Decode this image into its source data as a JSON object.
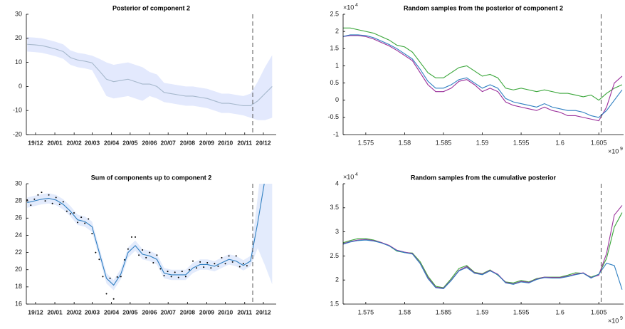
{
  "chart_data": [
    {
      "type": "line",
      "title": "Posterior of component 2",
      "x": [
        1.574,
        1.575,
        1.576,
        1.577,
        1.578,
        1.579,
        1.58,
        1.581,
        1.582,
        1.583,
        1.584,
        1.585,
        1.586,
        1.587,
        1.588,
        1.589,
        1.59,
        1.591,
        1.592,
        1.593,
        1.594,
        1.595,
        1.596,
        1.597,
        1.598,
        1.599,
        1.6,
        1.601,
        1.602,
        1.603,
        1.604,
        1.605,
        1.606,
        1.607,
        1.608
      ],
      "xlim": [
        1.57388,
        1.60856
      ],
      "xticks": [
        {
          "value": 1.5751584,
          "label": "19/12"
        },
        {
          "value": 1.5778368,
          "label": "20/01"
        },
        {
          "value": 1.5805152,
          "label": "20/02"
        },
        {
          "value": 1.5830208,
          "label": "20/03"
        },
        {
          "value": 1.5856992,
          "label": "20/04"
        },
        {
          "value": 1.5882912,
          "label": "20/05"
        },
        {
          "value": 1.5909696,
          "label": "20/06"
        },
        {
          "value": 1.5935616,
          "label": "20/07"
        },
        {
          "value": 1.59624,
          "label": "20/08"
        },
        {
          "value": 1.5989184,
          "label": "20/09"
        },
        {
          "value": 1.6015104,
          "label": "20/10"
        },
        {
          "value": 1.6041888,
          "label": "20/11"
        },
        {
          "value": 1.6067808,
          "label": "20/12"
        }
      ],
      "ylim": [
        -20,
        30
      ],
      "yticks": [
        -20,
        -10,
        0,
        10,
        20,
        30
      ],
      "band": {
        "color": "#e3e9fd",
        "upper": [
          20.5,
          20.3,
          20,
          19.3,
          18.5,
          17.5,
          15,
          14,
          13.5,
          12.8,
          11.5,
          10,
          9,
          9.5,
          10,
          9,
          8,
          6,
          5,
          1.5,
          1,
          0.5,
          0,
          0,
          -0.5,
          -1,
          -2,
          -3,
          -3,
          -3.5,
          -4,
          -3,
          2,
          8,
          13
        ],
        "lower": [
          14.5,
          14.3,
          14,
          13.3,
          12.5,
          11.5,
          9,
          8,
          7.5,
          6.8,
          1.5,
          -4,
          -5,
          -4.5,
          -4,
          -5,
          -6,
          -4,
          -5,
          -6.5,
          -7,
          -7.5,
          -8,
          -8,
          -8.5,
          -9,
          -10,
          -11,
          -11,
          -11.5,
          -12,
          -13,
          -14,
          -14,
          -13
        ]
      },
      "series": [
        {
          "color": "#a6b8cc",
          "values": [
            17.5,
            17.3,
            17,
            16.3,
            15.5,
            14.5,
            12,
            11,
            10.5,
            9.8,
            6.5,
            3,
            2,
            2.5,
            3,
            2,
            1,
            1,
            0,
            -2.5,
            -3,
            -3.5,
            -4,
            -4,
            -4.5,
            -5,
            -6,
            -7,
            -7,
            -7.5,
            -8,
            -8,
            -6,
            -3,
            0
          ]
        }
      ],
      "vline": 1.6053
    },
    {
      "type": "line",
      "title": "Random samples from the posterior of component 2",
      "x": [
        1.572,
        1.573,
        1.574,
        1.575,
        1.576,
        1.577,
        1.578,
        1.579,
        1.58,
        1.581,
        1.582,
        1.583,
        1.584,
        1.585,
        1.586,
        1.587,
        1.588,
        1.589,
        1.59,
        1.591,
        1.592,
        1.593,
        1.594,
        1.595,
        1.596,
        1.597,
        1.598,
        1.599,
        1.6,
        1.601,
        1.602,
        1.603,
        1.604,
        1.605,
        1.606,
        1.607,
        1.608
      ],
      "xlim": [
        1.57208,
        1.60819
      ],
      "xticks": [
        {
          "value": 1.575,
          "label": "1.575"
        },
        {
          "value": 1.58,
          "label": "1.58"
        },
        {
          "value": 1.585,
          "label": "1.585"
        },
        {
          "value": 1.59,
          "label": "1.59"
        },
        {
          "value": 1.595,
          "label": "1.595"
        },
        {
          "value": 1.6,
          "label": "1.6"
        },
        {
          "value": 1.605,
          "label": "1.605"
        }
      ],
      "x_offset": {
        "base": "×10",
        "exp": "9"
      },
      "ylim": [
        -1,
        2.5
      ],
      "yticks": [
        -1,
        -0.5,
        0,
        0.5,
        1,
        1.5,
        2,
        2.5
      ],
      "y_offset": {
        "base": "×10",
        "exp": "4"
      },
      "series": [
        {
          "color": "#3aa63a",
          "values": [
            2.1,
            2.1,
            2.05,
            2.0,
            1.95,
            1.85,
            1.75,
            1.6,
            1.55,
            1.4,
            1.1,
            0.8,
            0.65,
            0.65,
            0.8,
            0.95,
            1.0,
            0.85,
            0.7,
            0.75,
            0.65,
            0.35,
            0.3,
            0.35,
            0.3,
            0.25,
            0.3,
            0.25,
            0.2,
            0.2,
            0.15,
            0.1,
            0.15,
            0.0,
            0.2,
            0.35,
            0.45
          ]
        },
        {
          "color": "#9a2f9a",
          "values": [
            1.85,
            1.88,
            1.88,
            1.85,
            1.78,
            1.68,
            1.58,
            1.45,
            1.3,
            1.15,
            0.8,
            0.45,
            0.25,
            0.25,
            0.35,
            0.55,
            0.6,
            0.45,
            0.25,
            0.35,
            0.25,
            -0.05,
            -0.15,
            -0.2,
            -0.25,
            -0.3,
            -0.2,
            -0.3,
            -0.35,
            -0.45,
            -0.45,
            -0.5,
            -0.55,
            -0.6,
            -0.2,
            0.5,
            0.7
          ]
        },
        {
          "color": "#2f7fc1",
          "values": [
            1.85,
            1.9,
            1.9,
            1.88,
            1.82,
            1.72,
            1.62,
            1.5,
            1.35,
            1.2,
            0.9,
            0.55,
            0.35,
            0.35,
            0.45,
            0.6,
            0.65,
            0.5,
            0.35,
            0.45,
            0.35,
            0.05,
            -0.05,
            -0.1,
            -0.15,
            -0.2,
            -0.1,
            -0.2,
            -0.25,
            -0.3,
            -0.3,
            -0.35,
            -0.45,
            -0.5,
            -0.3,
            0,
            0.3
          ]
        }
      ],
      "vline": 1.6053
    },
    {
      "type": "line",
      "title": "Sum of components up to component 2",
      "x": [
        1.574,
        1.575,
        1.576,
        1.577,
        1.578,
        1.579,
        1.58,
        1.581,
        1.582,
        1.583,
        1.584,
        1.585,
        1.586,
        1.587,
        1.588,
        1.589,
        1.59,
        1.591,
        1.592,
        1.593,
        1.594,
        1.595,
        1.596,
        1.597,
        1.598,
        1.599,
        1.6,
        1.601,
        1.602,
        1.603,
        1.604,
        1.605,
        1.606,
        1.607,
        1.608
      ],
      "xlim": [
        1.57388,
        1.60856
      ],
      "xticks": [
        {
          "value": 1.5751584,
          "label": "19/12"
        },
        {
          "value": 1.5778368,
          "label": "20/01"
        },
        {
          "value": 1.5805152,
          "label": "20/02"
        },
        {
          "value": 1.5830208,
          "label": "20/03"
        },
        {
          "value": 1.5856992,
          "label": "20/04"
        },
        {
          "value": 1.5882912,
          "label": "20/05"
        },
        {
          "value": 1.5909696,
          "label": "20/06"
        },
        {
          "value": 1.5935616,
          "label": "20/07"
        },
        {
          "value": 1.59624,
          "label": "20/08"
        },
        {
          "value": 1.5989184,
          "label": "20/09"
        },
        {
          "value": 1.6015104,
          "label": "20/10"
        },
        {
          "value": 1.6041888,
          "label": "20/11"
        },
        {
          "value": 1.6067808,
          "label": "20/12"
        }
      ],
      "ylim": [
        16,
        30
      ],
      "yticks": [
        16,
        18,
        20,
        22,
        24,
        26,
        28,
        30
      ],
      "band": {
        "color": "#e3ebfc",
        "upper": [
          28.4,
          28.6,
          28.8,
          28.9,
          28.7,
          28.2,
          27.4,
          26.4,
          26.2,
          25.6,
          22.6,
          19.6,
          18.8,
          20.1,
          22.6,
          23.4,
          22.4,
          22.2,
          21.8,
          20.2,
          20,
          20,
          20,
          20.8,
          21.2,
          21.2,
          21,
          21.4,
          21.8,
          21.6,
          21.1,
          21.6,
          28.5,
          36,
          42
        ],
        "lower": [
          27.2,
          27.4,
          27.6,
          27.7,
          27.5,
          27,
          26.2,
          25.2,
          25,
          24.4,
          21.4,
          18.4,
          17.6,
          18.9,
          21.4,
          22.2,
          21.2,
          21,
          20.6,
          19,
          18.8,
          18.8,
          18.8,
          19.6,
          20,
          20,
          19.8,
          20.2,
          20.6,
          20.4,
          19.9,
          20.4,
          22.5,
          20.5,
          18.3
        ]
      },
      "series": [
        {
          "color": "#2f7fc1",
          "values": [
            27.8,
            28.0,
            28.2,
            28.3,
            28.1,
            27.6,
            26.8,
            25.8,
            25.6,
            25.0,
            22.0,
            19.0,
            18.2,
            19.5,
            22.0,
            22.8,
            21.8,
            21.6,
            21.2,
            19.6,
            19.4,
            19.4,
            19.4,
            20.2,
            20.6,
            20.6,
            20.4,
            20.8,
            21.2,
            21.0,
            20.5,
            21.0,
            25.5,
            30.5,
            34
          ]
        }
      ],
      "points": {
        "color": "#000000",
        "x": [
          1.574,
          1.5745,
          1.575,
          1.5755,
          1.576,
          1.5765,
          1.577,
          1.5775,
          1.578,
          1.5785,
          1.579,
          1.5795,
          1.58,
          1.5805,
          1.581,
          1.5815,
          1.582,
          1.5825,
          1.583,
          1.5835,
          1.584,
          1.5845,
          1.585,
          1.5855,
          1.586,
          1.5865,
          1.587,
          1.5875,
          1.588,
          1.5885,
          1.589,
          1.5895,
          1.59,
          1.5905,
          1.591,
          1.5915,
          1.592,
          1.5925,
          1.593,
          1.5935,
          1.594,
          1.5945,
          1.595,
          1.5955,
          1.596,
          1.5965,
          1.597,
          1.5975,
          1.598,
          1.5985,
          1.599,
          1.5995,
          1.6,
          1.6005,
          1.601,
          1.6015,
          1.602,
          1.6025,
          1.603,
          1.6035,
          1.604,
          1.6045
        ],
        "y": [
          28.1,
          27.5,
          28.2,
          28.7,
          29.0,
          28.0,
          28.7,
          27.7,
          28.4,
          27.6,
          27.9,
          26.8,
          26.5,
          26.6,
          25.5,
          26.1,
          25.4,
          25.9,
          24.2,
          22.0,
          21.2,
          19.2,
          17.2,
          19.0,
          16.6,
          19.15,
          19.2,
          21.15,
          22.4,
          23.8,
          23.8,
          21.7,
          22.3,
          21.4,
          22.0,
          20.8,
          21.7,
          20.1,
          19.3,
          19.8,
          19.2,
          19.7,
          19.1,
          19.8,
          19.2,
          20.0,
          21.0,
          20.2,
          20.9,
          20.3,
          20.8,
          20.2,
          20.7,
          20.4,
          21.4,
          20.7,
          21.6,
          20.9,
          21.6,
          20.35,
          20.7,
          20.45
        ]
      },
      "vline": 1.6053
    },
    {
      "type": "line",
      "title": "Random samples from the cumulative posterior",
      "x": [
        1.572,
        1.573,
        1.574,
        1.575,
        1.576,
        1.577,
        1.578,
        1.579,
        1.58,
        1.581,
        1.582,
        1.583,
        1.584,
        1.585,
        1.586,
        1.587,
        1.588,
        1.589,
        1.59,
        1.591,
        1.592,
        1.593,
        1.594,
        1.595,
        1.596,
        1.597,
        1.598,
        1.599,
        1.6,
        1.601,
        1.602,
        1.603,
        1.604,
        1.605,
        1.606,
        1.607,
        1.608
      ],
      "xlim": [
        1.57208,
        1.60819
      ],
      "xticks": [
        {
          "value": 1.575,
          "label": "1.575"
        },
        {
          "value": 1.58,
          "label": "1.58"
        },
        {
          "value": 1.585,
          "label": "1.585"
        },
        {
          "value": 1.59,
          "label": "1.59"
        },
        {
          "value": 1.595,
          "label": "1.595"
        },
        {
          "value": 1.6,
          "label": "1.6"
        },
        {
          "value": 1.605,
          "label": "1.605"
        }
      ],
      "x_offset": {
        "base": "×10",
        "exp": "9"
      },
      "ylim": [
        1.5,
        4
      ],
      "yticks": [
        1.5,
        2,
        2.5,
        3,
        3.5,
        4
      ],
      "y_offset": {
        "base": "×10",
        "exp": "4"
      },
      "series": [
        {
          "color": "#3aa63a",
          "values": [
            2.77,
            2.82,
            2.86,
            2.86,
            2.83,
            2.78,
            2.71,
            2.6,
            2.57,
            2.56,
            2.38,
            2.08,
            1.87,
            1.84,
            2.03,
            2.24,
            2.3,
            2.16,
            2.13,
            2.21,
            2.1,
            1.96,
            1.94,
            1.99,
            1.96,
            2.03,
            2.06,
            2.06,
            2.06,
            2.1,
            2.15,
            2.14,
            2.06,
            2.12,
            2.45,
            3.1,
            3.4
          ]
        },
        {
          "color": "#9a2f9a",
          "values": [
            2.75,
            2.8,
            2.83,
            2.84,
            2.82,
            2.78,
            2.72,
            2.62,
            2.58,
            2.55,
            2.35,
            2.05,
            1.85,
            1.83,
            2.0,
            2.2,
            2.28,
            2.15,
            2.12,
            2.2,
            2.12,
            1.95,
            1.92,
            1.97,
            1.95,
            2.02,
            2.06,
            2.05,
            2.05,
            2.08,
            2.12,
            2.15,
            2.05,
            2.1,
            2.55,
            3.35,
            3.55
          ]
        },
        {
          "color": "#2f7fc1",
          "values": [
            2.74,
            2.79,
            2.82,
            2.83,
            2.81,
            2.77,
            2.71,
            2.61,
            2.57,
            2.54,
            2.34,
            2.03,
            1.84,
            1.82,
            1.99,
            2.19,
            2.26,
            2.14,
            2.11,
            2.19,
            2.11,
            1.94,
            1.91,
            1.96,
            1.94,
            2.01,
            2.05,
            2.04,
            2.04,
            2.07,
            2.11,
            2.14,
            2.04,
            2.12,
            2.35,
            2.3,
            1.8
          ]
        }
      ],
      "vline": 1.6053
    }
  ]
}
